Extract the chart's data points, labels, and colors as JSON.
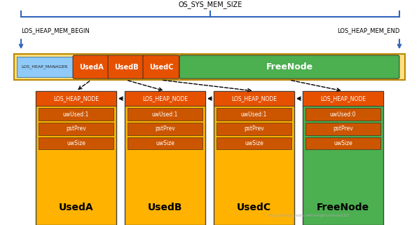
{
  "bg_color": "#ffffff",
  "title_top": "OS_SYS_MEM_SIZE",
  "label_begin": "LOS_HEAP_MEM_BEGIN",
  "label_end": "LOS_HEAP_MEM_END",
  "manager_color": "#90CAF9",
  "manager_label": "LOS_HEAP_MANAGER",
  "used_color": "#E65100",
  "free_color": "#4CAF50",
  "node_header_color": "#E65100",
  "node_row_color": "#CC5500",
  "node_body_used": "#FFB300",
  "node_body_free": "#4CAF50",
  "bar_used_color": "#E65100",
  "bar_free_color": "#4CAF50",
  "heap_bar_bg": "#FFE082",
  "brace_color": "#3366BB",
  "arrow_color": "#3366BB",
  "box_labels": [
    "UsedA",
    "UsedB",
    "UsedC",
    "FreeNode"
  ],
  "box_uw_used": [
    "uwUsed:1",
    "uwUsed:1",
    "uwUsed:1",
    "uwUsed:0"
  ],
  "bar_labels": [
    "UsedA",
    "UsedB",
    "UsedC",
    "FreeNode"
  ],
  "watermark": "https://blog.csdn.net/xinghunlove123"
}
